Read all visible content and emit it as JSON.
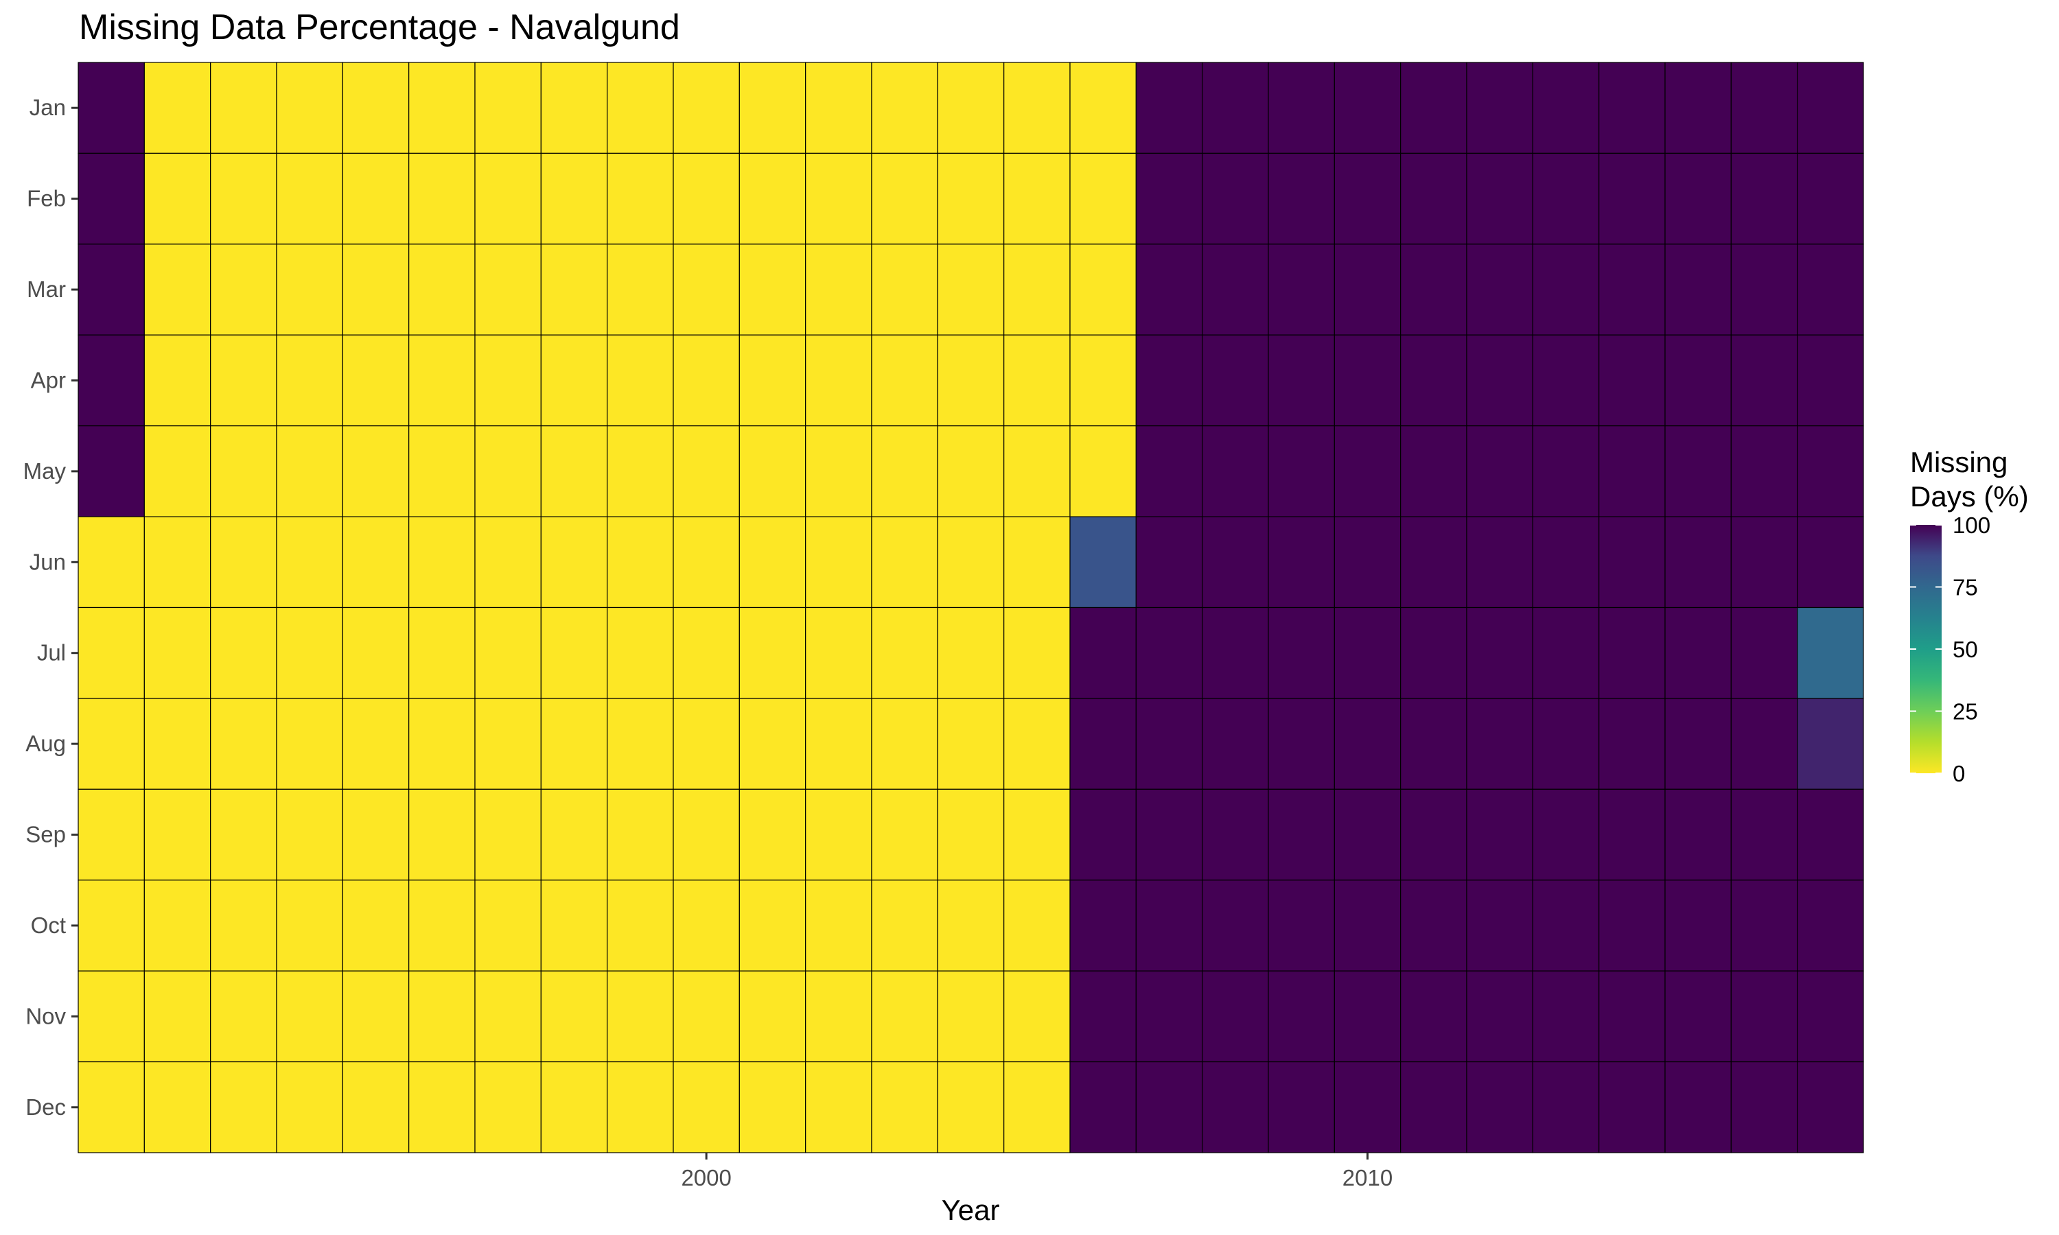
{
  "chart_data": {
    "type": "heatmap",
    "title": "Missing Data Percentage - Navalgund",
    "xlabel": "Year",
    "ylabel": "",
    "x_ticks": [
      2000,
      2010
    ],
    "years": [
      1991,
      1992,
      1993,
      1994,
      1995,
      1996,
      1997,
      1998,
      1999,
      2000,
      2001,
      2002,
      2003,
      2004,
      2005,
      2006,
      2007,
      2008,
      2009,
      2010,
      2011,
      2012,
      2013,
      2014,
      2015,
      2016,
      2017
    ],
    "months": [
      "Jan",
      "Feb",
      "Mar",
      "Apr",
      "May",
      "Jun",
      "Jul",
      "Aug",
      "Sep",
      "Oct",
      "Nov",
      "Dec"
    ],
    "values": [
      [
        100,
        0,
        0,
        0,
        0,
        0,
        0,
        0,
        0,
        0,
        0,
        0,
        0,
        0,
        0,
        0,
        100,
        100,
        100,
        100,
        100,
        100,
        100,
        100,
        100,
        100,
        100
      ],
      [
        100,
        0,
        0,
        0,
        0,
        0,
        0,
        0,
        0,
        0,
        0,
        0,
        0,
        0,
        0,
        0,
        100,
        100,
        100,
        100,
        100,
        100,
        100,
        100,
        100,
        100,
        100
      ],
      [
        100,
        0,
        0,
        0,
        0,
        0,
        0,
        0,
        0,
        0,
        0,
        0,
        0,
        0,
        0,
        0,
        100,
        100,
        100,
        100,
        100,
        100,
        100,
        100,
        100,
        100,
        100
      ],
      [
        100,
        0,
        0,
        0,
        0,
        0,
        0,
        0,
        0,
        0,
        0,
        0,
        0,
        0,
        0,
        0,
        100,
        100,
        100,
        100,
        100,
        100,
        100,
        100,
        100,
        100,
        100
      ],
      [
        100,
        0,
        0,
        0,
        0,
        0,
        0,
        0,
        0,
        0,
        0,
        0,
        0,
        0,
        0,
        0,
        100,
        100,
        100,
        100,
        100,
        100,
        100,
        100,
        100,
        100,
        100
      ],
      [
        0,
        0,
        0,
        0,
        0,
        0,
        0,
        0,
        0,
        0,
        0,
        0,
        0,
        0,
        0,
        83,
        100,
        100,
        100,
        100,
        100,
        100,
        100,
        100,
        100,
        100,
        100
      ],
      [
        0,
        0,
        0,
        0,
        0,
        0,
        0,
        0,
        0,
        0,
        0,
        0,
        0,
        0,
        0,
        100,
        100,
        100,
        100,
        100,
        100,
        100,
        100,
        100,
        100,
        100,
        74
      ],
      [
        0,
        0,
        0,
        0,
        0,
        0,
        0,
        0,
        0,
        0,
        0,
        0,
        0,
        0,
        0,
        100,
        100,
        100,
        100,
        100,
        100,
        100,
        100,
        100,
        100,
        100,
        94
      ],
      [
        0,
        0,
        0,
        0,
        0,
        0,
        0,
        0,
        0,
        0,
        0,
        0,
        0,
        0,
        0,
        100,
        100,
        100,
        100,
        100,
        100,
        100,
        100,
        100,
        100,
        100,
        100
      ],
      [
        0,
        0,
        0,
        0,
        0,
        0,
        0,
        0,
        0,
        0,
        0,
        0,
        0,
        0,
        0,
        100,
        100,
        100,
        100,
        100,
        100,
        100,
        100,
        100,
        100,
        100,
        100
      ],
      [
        0,
        0,
        0,
        0,
        0,
        0,
        0,
        0,
        0,
        0,
        0,
        0,
        0,
        0,
        0,
        100,
        100,
        100,
        100,
        100,
        100,
        100,
        100,
        100,
        100,
        100,
        100
      ],
      [
        0,
        0,
        0,
        0,
        0,
        0,
        0,
        0,
        0,
        0,
        0,
        0,
        0,
        0,
        0,
        100,
        100,
        100,
        100,
        100,
        100,
        100,
        100,
        100,
        100,
        100,
        100
      ]
    ],
    "legend": {
      "title_lines": [
        "Missing",
        "Days (%)"
      ],
      "ticks": [
        100,
        75,
        50,
        25,
        0
      ],
      "range": [
        0,
        100
      ],
      "palette": "viridis reversed",
      "placement": "right"
    },
    "colors": {
      "low": "#FDE725",
      "high": "#440154",
      "cell_border": "#000000"
    },
    "grid": false
  }
}
